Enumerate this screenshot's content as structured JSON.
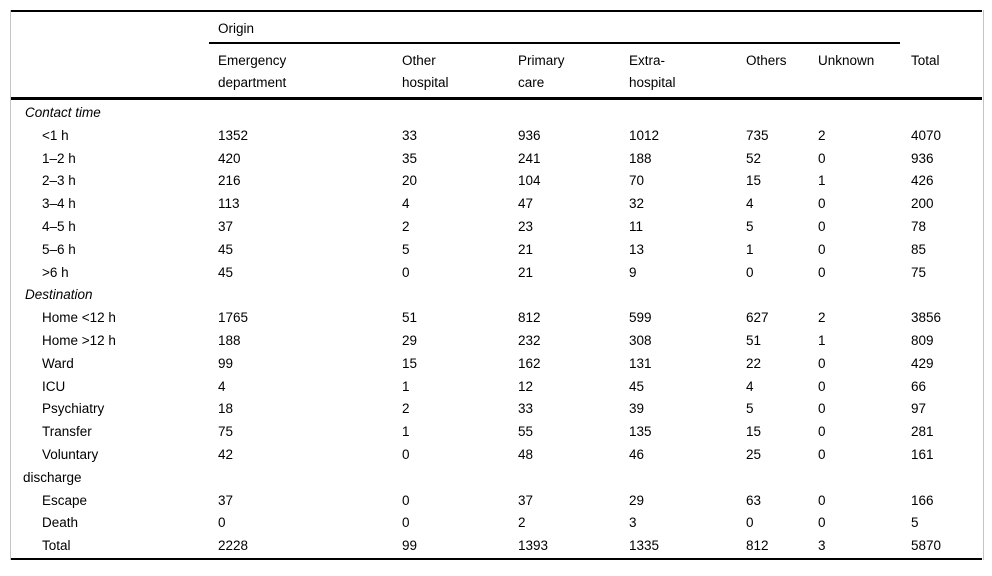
{
  "table": {
    "origin_label": "Origin",
    "columns": [
      "Emergency department",
      "Other hospital",
      "Primary care",
      "Extra-hospital",
      "Others",
      "Unknown",
      "Total"
    ],
    "sections": [
      {
        "header": "Contact time",
        "rows": [
          {
            "label": "<1 h",
            "values": [
              1352,
              33,
              936,
              1012,
              735,
              2,
              4070
            ]
          },
          {
            "label": "1–2 h",
            "values": [
              420,
              35,
              241,
              188,
              52,
              0,
              936
            ]
          },
          {
            "label": "2–3 h",
            "values": [
              216,
              20,
              104,
              70,
              15,
              1,
              426
            ]
          },
          {
            "label": "3–4 h",
            "values": [
              113,
              4,
              47,
              32,
              4,
              0,
              200
            ]
          },
          {
            "label": "4–5 h",
            "values": [
              37,
              2,
              23,
              11,
              5,
              0,
              78
            ]
          },
          {
            "label": "5–6 h",
            "values": [
              45,
              5,
              21,
              13,
              1,
              0,
              85
            ]
          },
          {
            "label": ">6 h",
            "values": [
              45,
              0,
              21,
              9,
              0,
              0,
              75
            ]
          }
        ]
      },
      {
        "header": "Destination",
        "rows": [
          {
            "label": "Home <12 h",
            "values": [
              1765,
              51,
              812,
              599,
              627,
              2,
              3856
            ]
          },
          {
            "label": "Home >12 h",
            "values": [
              188,
              29,
              232,
              308,
              51,
              1,
              809
            ]
          },
          {
            "label": "Ward",
            "values": [
              99,
              15,
              162,
              131,
              22,
              0,
              429
            ]
          },
          {
            "label": "ICU",
            "values": [
              4,
              1,
              12,
              45,
              4,
              0,
              66
            ]
          },
          {
            "label": "Psychiatry",
            "values": [
              18,
              2,
              33,
              39,
              5,
              0,
              97
            ]
          },
          {
            "label": "Transfer",
            "values": [
              75,
              1,
              55,
              135,
              15,
              0,
              281
            ]
          },
          {
            "label": "Voluntary discharge",
            "values": [
              42,
              0,
              48,
              46,
              25,
              0,
              161
            ]
          },
          {
            "label": "Escape",
            "values": [
              37,
              0,
              37,
              29,
              63,
              0,
              166
            ]
          },
          {
            "label": "Death",
            "values": [
              0,
              0,
              2,
              3,
              0,
              0,
              5
            ]
          }
        ]
      }
    ],
    "total_row": {
      "label": "Total",
      "values": [
        2228,
        99,
        1393,
        1335,
        812,
        3,
        5870
      ]
    },
    "rule_color": "#000000",
    "frame_color": "#c4c4c4"
  }
}
